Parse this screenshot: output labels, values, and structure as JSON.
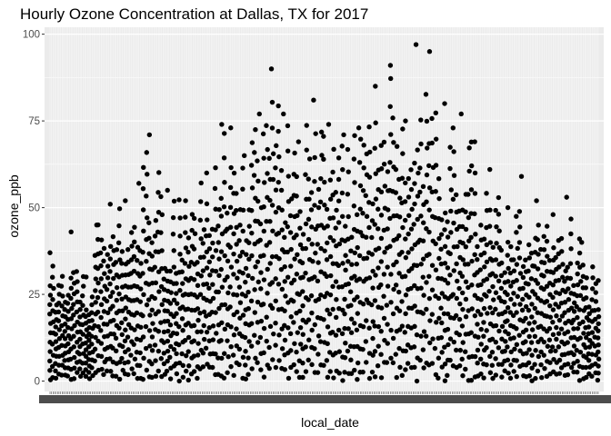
{
  "chart_data": {
    "type": "scatter",
    "title": "Hourly Ozone Concentration at Dallas, TX for 2017",
    "xlabel": "local_date",
    "ylabel": "ozone_ppb",
    "x_axis_kind": "categorical dates (one category per day of 2017, tick labels overplotted and illegible)",
    "x_range": [
      "2017-01-01",
      "2017-12-31"
    ],
    "ylim": [
      -3,
      102
    ],
    "y_ticks": [
      0,
      25,
      50,
      75,
      100
    ],
    "y_tick_labels": [
      "0",
      "25",
      "50",
      "75",
      "100"
    ],
    "grid": true,
    "legend": "none",
    "colors": {
      "panel": "#ebebeb",
      "grid": "#ffffff",
      "points": "#000000"
    },
    "daily_max_ozone_ppb": [
      {
        "x": "2017-01-01",
        "y": 37
      },
      {
        "x": "2017-01-15",
        "y": 43
      },
      {
        "x": "2017-01-25",
        "y": 30
      },
      {
        "x": "2017-02-01",
        "y": 45
      },
      {
        "x": "2017-02-10",
        "y": 51
      },
      {
        "x": "2017-02-20",
        "y": 52
      },
      {
        "x": "2017-03-01",
        "y": 57
      },
      {
        "x": "2017-03-08",
        "y": 71
      },
      {
        "x": "2017-03-20",
        "y": 55
      },
      {
        "x": "2017-04-01",
        "y": 52
      },
      {
        "x": "2017-04-15",
        "y": 60
      },
      {
        "x": "2017-04-25",
        "y": 74
      },
      {
        "x": "2017-05-01",
        "y": 73
      },
      {
        "x": "2017-05-10",
        "y": 65
      },
      {
        "x": "2017-05-20",
        "y": 77
      },
      {
        "x": "2017-05-28",
        "y": 90
      },
      {
        "x": "2017-06-05",
        "y": 77
      },
      {
        "x": "2017-06-15",
        "y": 69
      },
      {
        "x": "2017-06-25",
        "y": 81
      },
      {
        "x": "2017-07-05",
        "y": 74
      },
      {
        "x": "2017-07-15",
        "y": 71
      },
      {
        "x": "2017-07-25",
        "y": 73
      },
      {
        "x": "2017-08-05",
        "y": 85
      },
      {
        "x": "2017-08-15",
        "y": 91
      },
      {
        "x": "2017-08-25",
        "y": 75
      },
      {
        "x": "2017-09-01",
        "y": 97
      },
      {
        "x": "2017-09-10",
        "y": 95
      },
      {
        "x": "2017-09-20",
        "y": 80
      },
      {
        "x": "2017-10-01",
        "y": 77
      },
      {
        "x": "2017-10-10",
        "y": 69
      },
      {
        "x": "2017-10-20",
        "y": 61
      },
      {
        "x": "2017-11-01",
        "y": 50
      },
      {
        "x": "2017-11-10",
        "y": 59
      },
      {
        "x": "2017-11-20",
        "y": 52
      },
      {
        "x": "2017-12-01",
        "y": 48
      },
      {
        "x": "2017-12-10",
        "y": 53
      },
      {
        "x": "2017-12-20",
        "y": 40
      },
      {
        "x": "2017-12-31",
        "y": 29
      }
    ]
  }
}
